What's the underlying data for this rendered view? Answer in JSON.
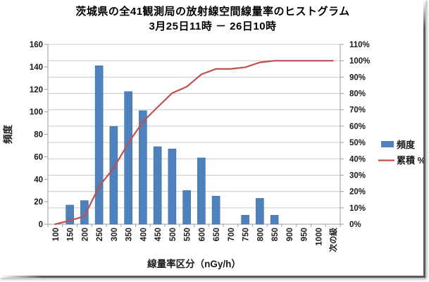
{
  "title": {
    "line1": "茨城県の全41観測局の放射線空間線量率のヒストグラム",
    "line2": "3月25日11時 － 26日10時"
  },
  "chart_data": {
    "type": "bar",
    "subtype": "pareto-histogram",
    "categories": [
      "100",
      "150",
      "200",
      "250",
      "300",
      "350",
      "400",
      "450",
      "500",
      "550",
      "600",
      "650",
      "700",
      "750",
      "800",
      "850",
      "900",
      "950",
      "1000",
      "次の級"
    ],
    "series": [
      {
        "name": "頻度",
        "type": "bar",
        "axis": "left",
        "color": "#4F81BD",
        "values": [
          0,
          17,
          21,
          141,
          87,
          118,
          101,
          69,
          67,
          30,
          59,
          25,
          0,
          8,
          23,
          8,
          0,
          0,
          0,
          0
        ]
      },
      {
        "name": "累積 %",
        "type": "line",
        "axis": "right",
        "color": "#C0504D",
        "values": [
          0,
          2.2,
          4.9,
          23.1,
          34.4,
          49.6,
          62.7,
          71.6,
          80.2,
          84.1,
          91.7,
          95,
          95,
          96,
          99,
          100,
          100,
          100,
          100,
          100
        ]
      }
    ],
    "left_axis": {
      "title": "頻度",
      "min": 0,
      "max": 160,
      "step": 20
    },
    "right_axis": {
      "min": 0,
      "max": 110,
      "step": 10,
      "unit": "%"
    },
    "x_axis": {
      "title": "線量率区分（nGy/h）"
    },
    "legend": {
      "position": "right",
      "items": [
        {
          "label": "頻度",
          "marker": "square",
          "color": "#4F81BD"
        },
        {
          "label": "累積 %",
          "marker": "line",
          "color": "#C0504D"
        }
      ]
    },
    "grid": "horizontal",
    "colors": {
      "bar": "#4F81BD",
      "line": "#C0504D",
      "gridline": "#C9C9C9",
      "axis": "#9E9E9E",
      "text": "#1A1A1A"
    }
  }
}
